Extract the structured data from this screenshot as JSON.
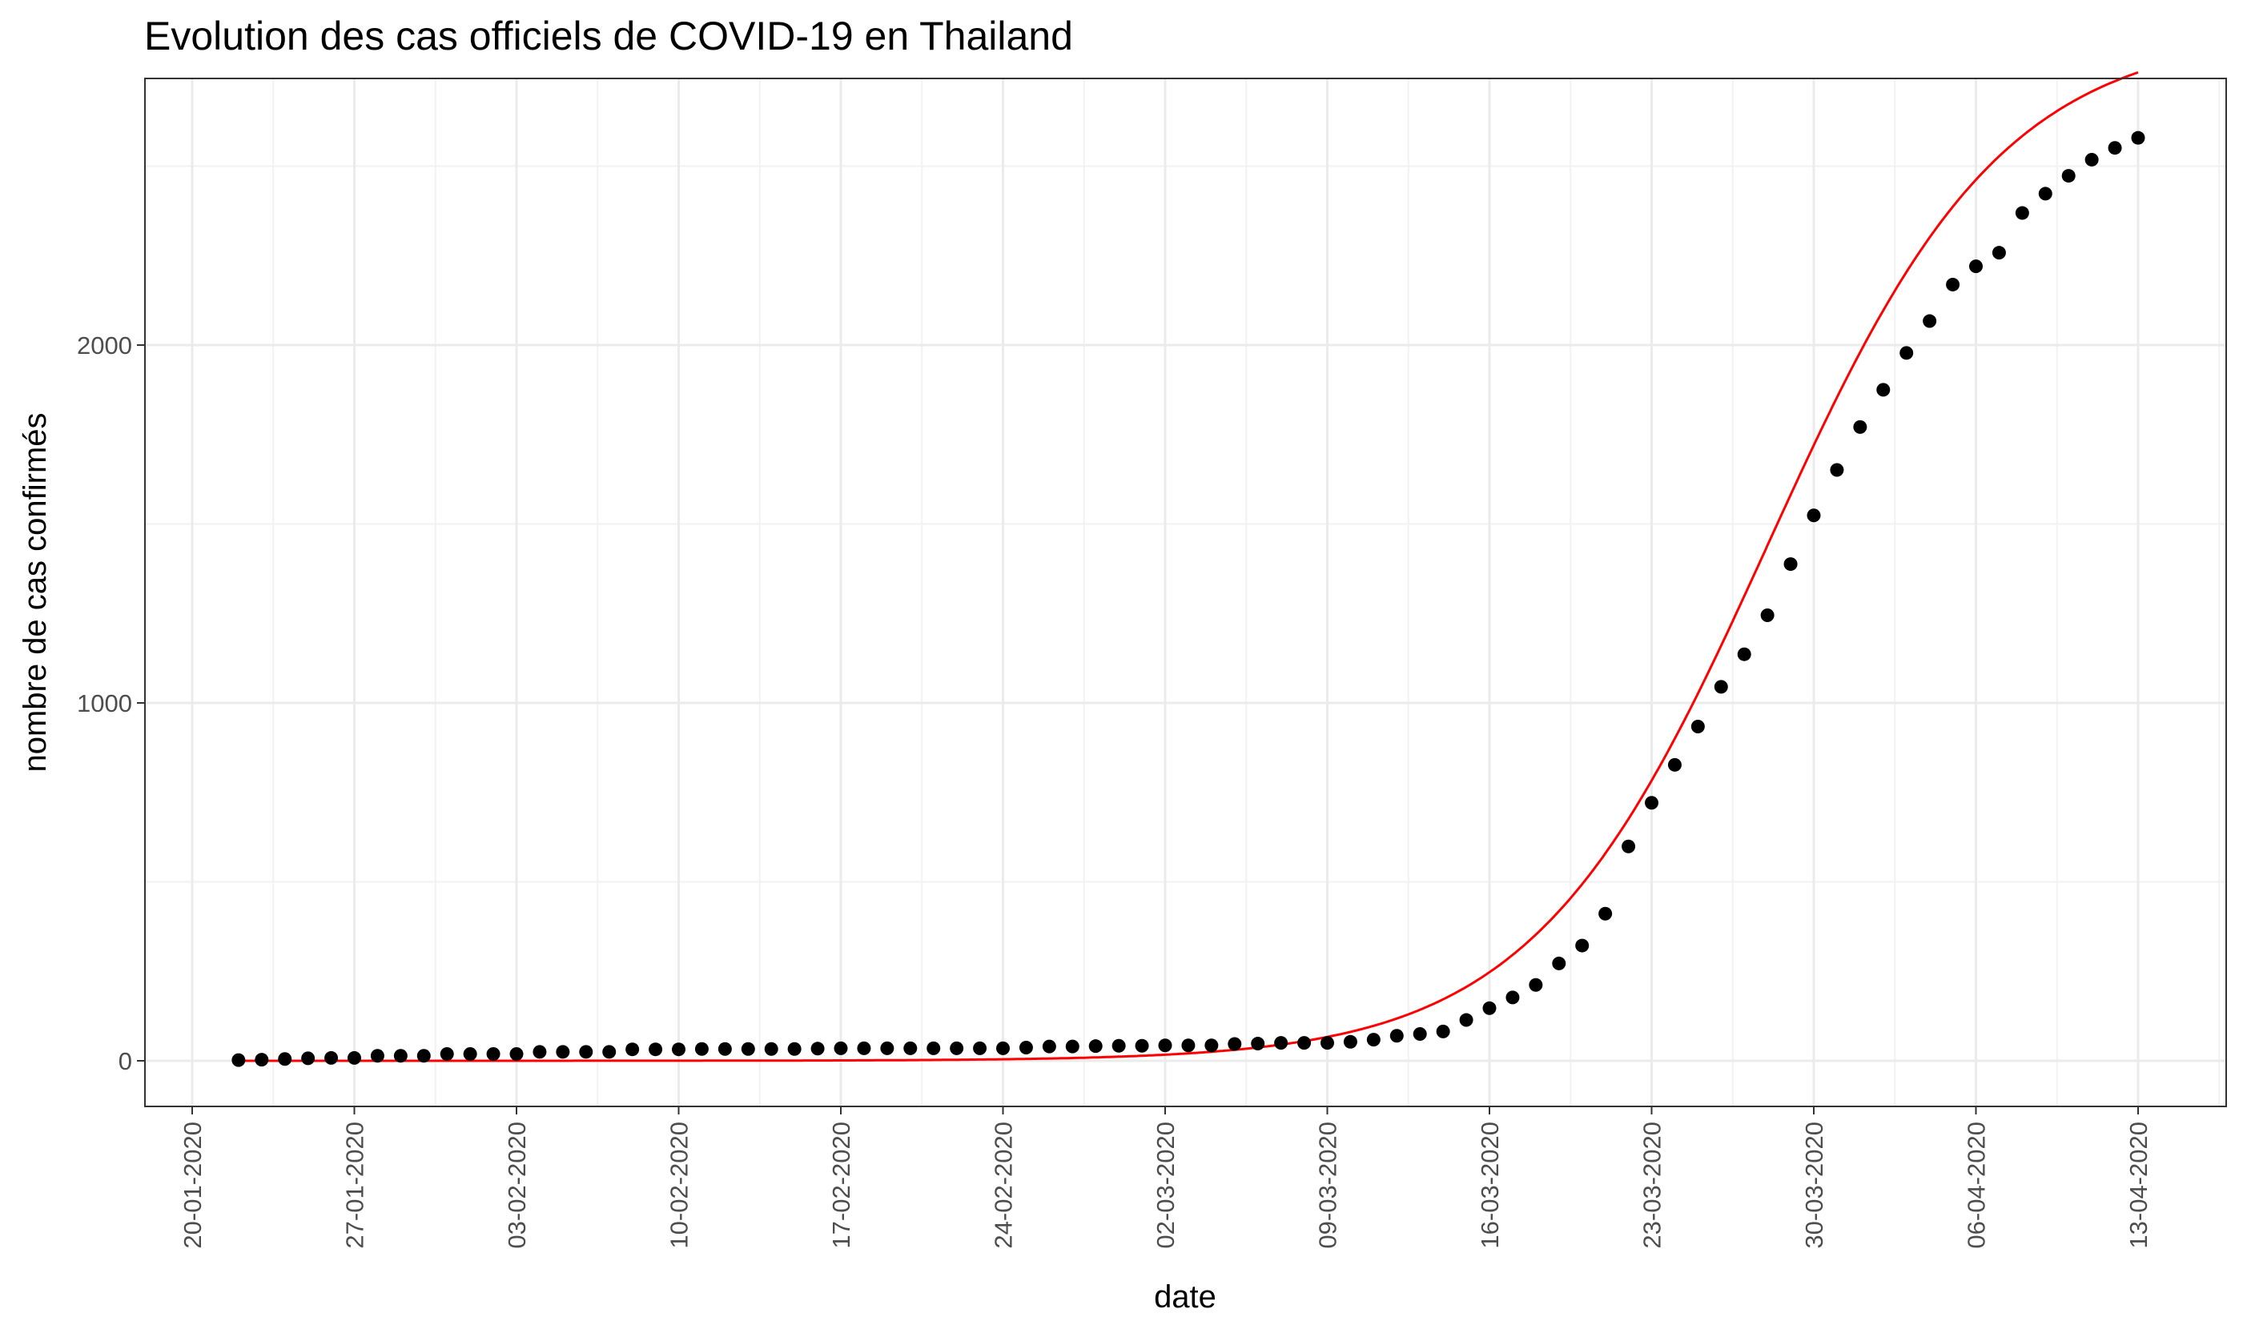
{
  "chart_data": {
    "type": "scatter",
    "title": "Evolution des cas officiels de COVID-19 en Thailand",
    "xlabel": "date",
    "ylabel": "nombre de cas confirmés",
    "x_range": [
      "2020-01-20",
      "2020-04-13"
    ],
    "ylim": [
      -120,
      2730
    ],
    "y_ticks": [
      0,
      1000,
      2000
    ],
    "y_tick_labels": [
      "0",
      "1000",
      "2000"
    ],
    "x_ticks": [
      "2020-01-20",
      "2020-01-27",
      "2020-02-03",
      "2020-02-10",
      "2020-02-17",
      "2020-02-24",
      "2020-03-02",
      "2020-03-09",
      "2020-03-16",
      "2020-03-23",
      "2020-03-30",
      "2020-04-06",
      "2020-04-13"
    ],
    "x_tick_labels": [
      "20-01-2020",
      "27-01-2020",
      "03-02-2020",
      "10-02-2020",
      "17-02-2020",
      "24-02-2020",
      "02-03-2020",
      "09-03-2020",
      "16-03-2020",
      "23-03-2020",
      "30-03-2020",
      "06-04-2020",
      "13-04-2020"
    ],
    "grid": true,
    "legend": "none",
    "series": [
      {
        "kind": "points",
        "color": "#000000",
        "start_date": "2020-01-22",
        "values": [
          2,
          3,
          5,
          7,
          8,
          8,
          14,
          14,
          14,
          19,
          19,
          19,
          19,
          25,
          25,
          25,
          25,
          32,
          32,
          32,
          33,
          33,
          33,
          33,
          33,
          34,
          35,
          35,
          35,
          35,
          35,
          35,
          35,
          35,
          37,
          40,
          40,
          41,
          42,
          42,
          43,
          43,
          43,
          47,
          48,
          50,
          50,
          50,
          53,
          59,
          70,
          75,
          82,
          114,
          147,
          177,
          212,
          272,
          322,
          411,
          599,
          721,
          827,
          934,
          1045,
          1136,
          1245,
          1388,
          1524,
          1651,
          1771,
          1875,
          1978,
          2067,
          2169,
          2220,
          2258,
          2369,
          2423,
          2473,
          2518,
          2551,
          2579
        ]
      },
      {
        "kind": "fitted-curve",
        "color": "#ff0000",
        "model": "logistic",
        "start_date": "2020-01-22",
        "end_date": "2020-04-13",
        "capacity": 2880,
        "midpoint_date": "2020-03-28",
        "rate": 0.197,
        "baseline": 0
      }
    ]
  }
}
